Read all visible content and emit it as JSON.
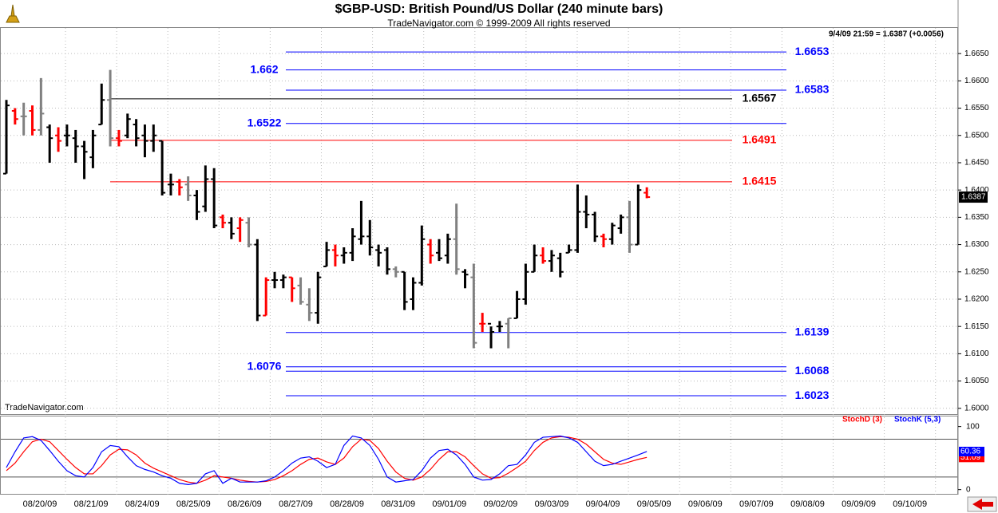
{
  "chart_data": [
    {
      "type": "ohlc",
      "title": "$GBP-USD:  British Pound/US Dollar  (240 minute bars)",
      "subtitle": "TradeNavigator.com © 1999-2009 All rights reserved",
      "status": "9/4/09 21:59 = 1.6387 (+0.0056)",
      "watermark": "TradeNavigator.com",
      "xticks": [
        "08/20/09",
        "08/21/09",
        "08/24/09",
        "08/25/09",
        "08/26/09",
        "08/27/09",
        "08/28/09",
        "08/31/09",
        "09/01/09",
        "09/02/09",
        "09/03/09",
        "09/04/09",
        "09/05/09",
        "09/06/09",
        "09/07/09",
        "09/08/09",
        "09/09/09",
        "09/10/09"
      ],
      "ylim": [
        1.5988,
        1.6697
      ],
      "yticks": [
        {
          "value": 1.6,
          "label": "1.6000"
        },
        {
          "value": 1.605,
          "label": "1.6050"
        },
        {
          "value": 1.61,
          "label": "1.6100"
        },
        {
          "value": 1.615,
          "label": "1.6150"
        },
        {
          "value": 1.62,
          "label": "1.6200"
        },
        {
          "value": 1.625,
          "label": "1.6250"
        },
        {
          "value": 1.63,
          "label": "1.6300"
        },
        {
          "value": 1.635,
          "label": "1.6350"
        },
        {
          "value": 1.64,
          "label": "1.6400"
        },
        {
          "value": 1.645,
          "label": "1.6450"
        },
        {
          "value": 1.65,
          "label": "1.6500"
        },
        {
          "value": 1.655,
          "label": "1.6550"
        },
        {
          "value": 1.66,
          "label": "1.6600"
        },
        {
          "value": 1.665,
          "label": "1.6650"
        }
      ],
      "grid": true,
      "high": [
        1.6565,
        1.655,
        1.656,
        1.6555,
        1.6605,
        1.652,
        1.6515,
        1.652,
        1.651,
        1.649,
        1.651,
        1.6595,
        1.662,
        1.651,
        1.654,
        1.653,
        1.652,
        1.652,
        1.649,
        1.643,
        1.642,
        1.6425,
        1.64,
        1.6445,
        1.644,
        1.6355,
        1.635,
        1.635,
        1.635,
        1.631,
        1.624,
        1.625,
        1.6245,
        1.624,
        1.624,
        1.622,
        1.625,
        1.6305,
        1.63,
        1.6295,
        1.633,
        1.638,
        1.6345,
        1.63,
        1.6295,
        1.626,
        1.625,
        1.624,
        1.6335,
        1.631,
        1.631,
        1.632,
        1.6375,
        1.6255,
        1.6265,
        1.6175,
        1.615,
        1.616,
        1.6165,
        1.6215,
        1.6265,
        1.63,
        1.6295,
        1.629,
        1.6285,
        1.63,
        1.641,
        1.639,
        1.636,
        1.632,
        1.634,
        1.6355,
        1.638,
        1.641,
        1.6405
      ],
      "low": [
        1.643,
        1.652,
        1.65,
        1.65,
        1.65,
        1.645,
        1.647,
        1.648,
        1.645,
        1.642,
        1.644,
        1.652,
        1.648,
        1.648,
        1.6495,
        1.648,
        1.646,
        1.647,
        1.639,
        1.639,
        1.639,
        1.638,
        1.6345,
        1.636,
        1.633,
        1.633,
        1.631,
        1.6305,
        1.6295,
        1.616,
        1.617,
        1.622,
        1.622,
        1.6195,
        1.619,
        1.616,
        1.6155,
        1.626,
        1.626,
        1.6265,
        1.627,
        1.63,
        1.628,
        1.626,
        1.6245,
        1.624,
        1.618,
        1.618,
        1.6225,
        1.6265,
        1.627,
        1.6265,
        1.6245,
        1.622,
        1.611,
        1.614,
        1.611,
        1.614,
        1.611,
        1.6165,
        1.619,
        1.625,
        1.6265,
        1.625,
        1.624,
        1.6285,
        1.6285,
        1.633,
        1.6305,
        1.6295,
        1.63,
        1.632,
        1.6285,
        1.63,
        1.6385
      ],
      "open": [
        1.643,
        1.6545,
        1.6535,
        1.6545,
        1.651,
        1.6515,
        1.65,
        1.65,
        1.6495,
        1.648,
        1.646,
        1.652,
        1.6565,
        1.6495,
        1.65,
        1.652,
        1.65,
        1.649,
        1.649,
        1.641,
        1.6415,
        1.641,
        1.639,
        1.637,
        1.642,
        1.635,
        1.634,
        1.633,
        1.634,
        1.63,
        1.617,
        1.6235,
        1.6235,
        1.624,
        1.6225,
        1.619,
        1.6175,
        1.626,
        1.629,
        1.628,
        1.6285,
        1.631,
        1.6315,
        1.629,
        1.629,
        1.6255,
        1.625,
        1.62,
        1.623,
        1.63,
        1.6285,
        1.628,
        1.631,
        1.625,
        1.624,
        1.6155,
        1.6155,
        1.615,
        1.6155,
        1.6165,
        1.62,
        1.625,
        1.628,
        1.627,
        1.6275,
        1.6285,
        1.629,
        1.636,
        1.6355,
        1.6315,
        1.631,
        1.633,
        1.635,
        1.63,
        1.6395
      ],
      "close": [
        1.6555,
        1.653,
        1.6535,
        1.651,
        1.654,
        1.6495,
        1.649,
        1.65,
        1.648,
        1.647,
        1.65,
        1.6565,
        1.6495,
        1.649,
        1.653,
        1.6495,
        1.649,
        1.65,
        1.6395,
        1.641,
        1.6405,
        1.639,
        1.636,
        1.642,
        1.6335,
        1.634,
        1.632,
        1.6345,
        1.63,
        1.617,
        1.6235,
        1.6235,
        1.624,
        1.622,
        1.6195,
        1.6175,
        1.624,
        1.629,
        1.628,
        1.6285,
        1.6315,
        1.6315,
        1.6295,
        1.6285,
        1.6255,
        1.625,
        1.6195,
        1.623,
        1.631,
        1.628,
        1.6275,
        1.631,
        1.6255,
        1.6245,
        1.612,
        1.6155,
        1.614,
        1.615,
        1.6165,
        1.62,
        1.625,
        1.628,
        1.627,
        1.628,
        1.625,
        1.629,
        1.636,
        1.6355,
        1.6315,
        1.631,
        1.6335,
        1.635,
        1.63,
        1.64,
        1.6387
      ],
      "bar_colors": [
        "#000000",
        "#ff0000",
        "#808080",
        "#ff0000",
        "#808080",
        "#000000",
        "#ff0000",
        "#000000",
        "#000000",
        "#000000",
        "#000000",
        "#000000",
        "#808080",
        "#ff0000",
        "#000000",
        "#000000",
        "#000000",
        "#000000",
        "#000000",
        "#000000",
        "#ff0000",
        "#808080",
        "#000000",
        "#000000",
        "#000000",
        "#ff0000",
        "#000000",
        "#ff0000",
        "#808080",
        "#000000",
        "#ff0000",
        "#000000",
        "#000000",
        "#ff0000",
        "#808080",
        "#808080",
        "#000000",
        "#000000",
        "#ff0000",
        "#000000",
        "#000000",
        "#000000",
        "#000000",
        "#000000",
        "#000000",
        "#808080",
        "#000000",
        "#000000",
        "#000000",
        "#ff0000",
        "#000000",
        "#000000",
        "#808080",
        "#000000",
        "#808080",
        "#ff0000",
        "#000000",
        "#000000",
        "#808080",
        "#000000",
        "#000000",
        "#000000",
        "#ff0000",
        "#000000",
        "#000000",
        "#000000",
        "#000000",
        "#000000",
        "#000000",
        "#ff0000",
        "#000000",
        "#000000",
        "#808080",
        "#000000",
        "#ff0000"
      ],
      "levels": [
        {
          "value": 1.6653,
          "color": "#0000ff",
          "label_side": "right"
        },
        {
          "value": 1.662,
          "color": "#0000ff",
          "label_side": "left"
        },
        {
          "value": 1.6583,
          "color": "#0000ff",
          "label_side": "right"
        },
        {
          "value": 1.6567,
          "color": "#000000",
          "label_side": "right"
        },
        {
          "value": 1.6522,
          "color": "#0000ff",
          "label_side": "left"
        },
        {
          "value": 1.6491,
          "color": "#ff0000",
          "label_side": "right"
        },
        {
          "value": 1.6415,
          "color": "#ff0000",
          "label_side": "right"
        },
        {
          "value": 1.6139,
          "color": "#0000ff",
          "label_side": "right"
        },
        {
          "value": 1.6076,
          "color": "#0000ff",
          "label_side": "left"
        },
        {
          "value": 1.6068,
          "color": "#0000ff",
          "label_side": "right"
        },
        {
          "value": 1.6023,
          "color": "#0000ff",
          "label_side": "right"
        }
      ]
    },
    {
      "type": "line",
      "ylim": [
        -8,
        116
      ],
      "yticks": [
        0,
        100
      ],
      "hlines": [
        20,
        80
      ],
      "series": [
        {
          "name": "StochD (3)",
          "color": "#ff0000",
          "values": [
            30,
            42,
            60,
            76,
            80,
            76,
            62,
            48,
            35,
            25,
            25,
            38,
            55,
            64,
            63,
            55,
            42,
            34,
            28,
            22,
            16,
            12,
            10,
            15,
            22,
            20,
            18,
            15,
            13,
            12,
            13,
            16,
            22,
            30,
            40,
            48,
            50,
            44,
            40,
            50,
            68,
            80,
            78,
            65,
            45,
            28,
            18,
            15,
            20,
            32,
            48,
            60,
            60,
            52,
            38,
            25,
            18,
            19,
            26,
            35,
            45,
            62,
            75,
            82,
            84,
            83,
            80,
            72,
            60,
            48,
            42,
            40,
            44,
            48,
            51.09
          ]
        },
        {
          "name": "StochK (5,3)",
          "color": "#0000ff",
          "values": [
            35,
            60,
            82,
            84,
            78,
            62,
            45,
            30,
            22,
            20,
            35,
            60,
            70,
            68,
            52,
            38,
            32,
            28,
            22,
            18,
            10,
            8,
            10,
            25,
            30,
            10,
            18,
            12,
            12,
            12,
            14,
            20,
            30,
            42,
            50,
            52,
            45,
            35,
            40,
            70,
            85,
            82,
            70,
            48,
            20,
            12,
            14,
            16,
            30,
            50,
            62,
            64,
            55,
            40,
            20,
            15,
            16,
            25,
            38,
            40,
            55,
            75,
            83,
            84,
            85,
            82,
            75,
            60,
            45,
            38,
            40,
            45,
            50,
            55,
            60.36
          ]
        }
      ]
    }
  ]
}
